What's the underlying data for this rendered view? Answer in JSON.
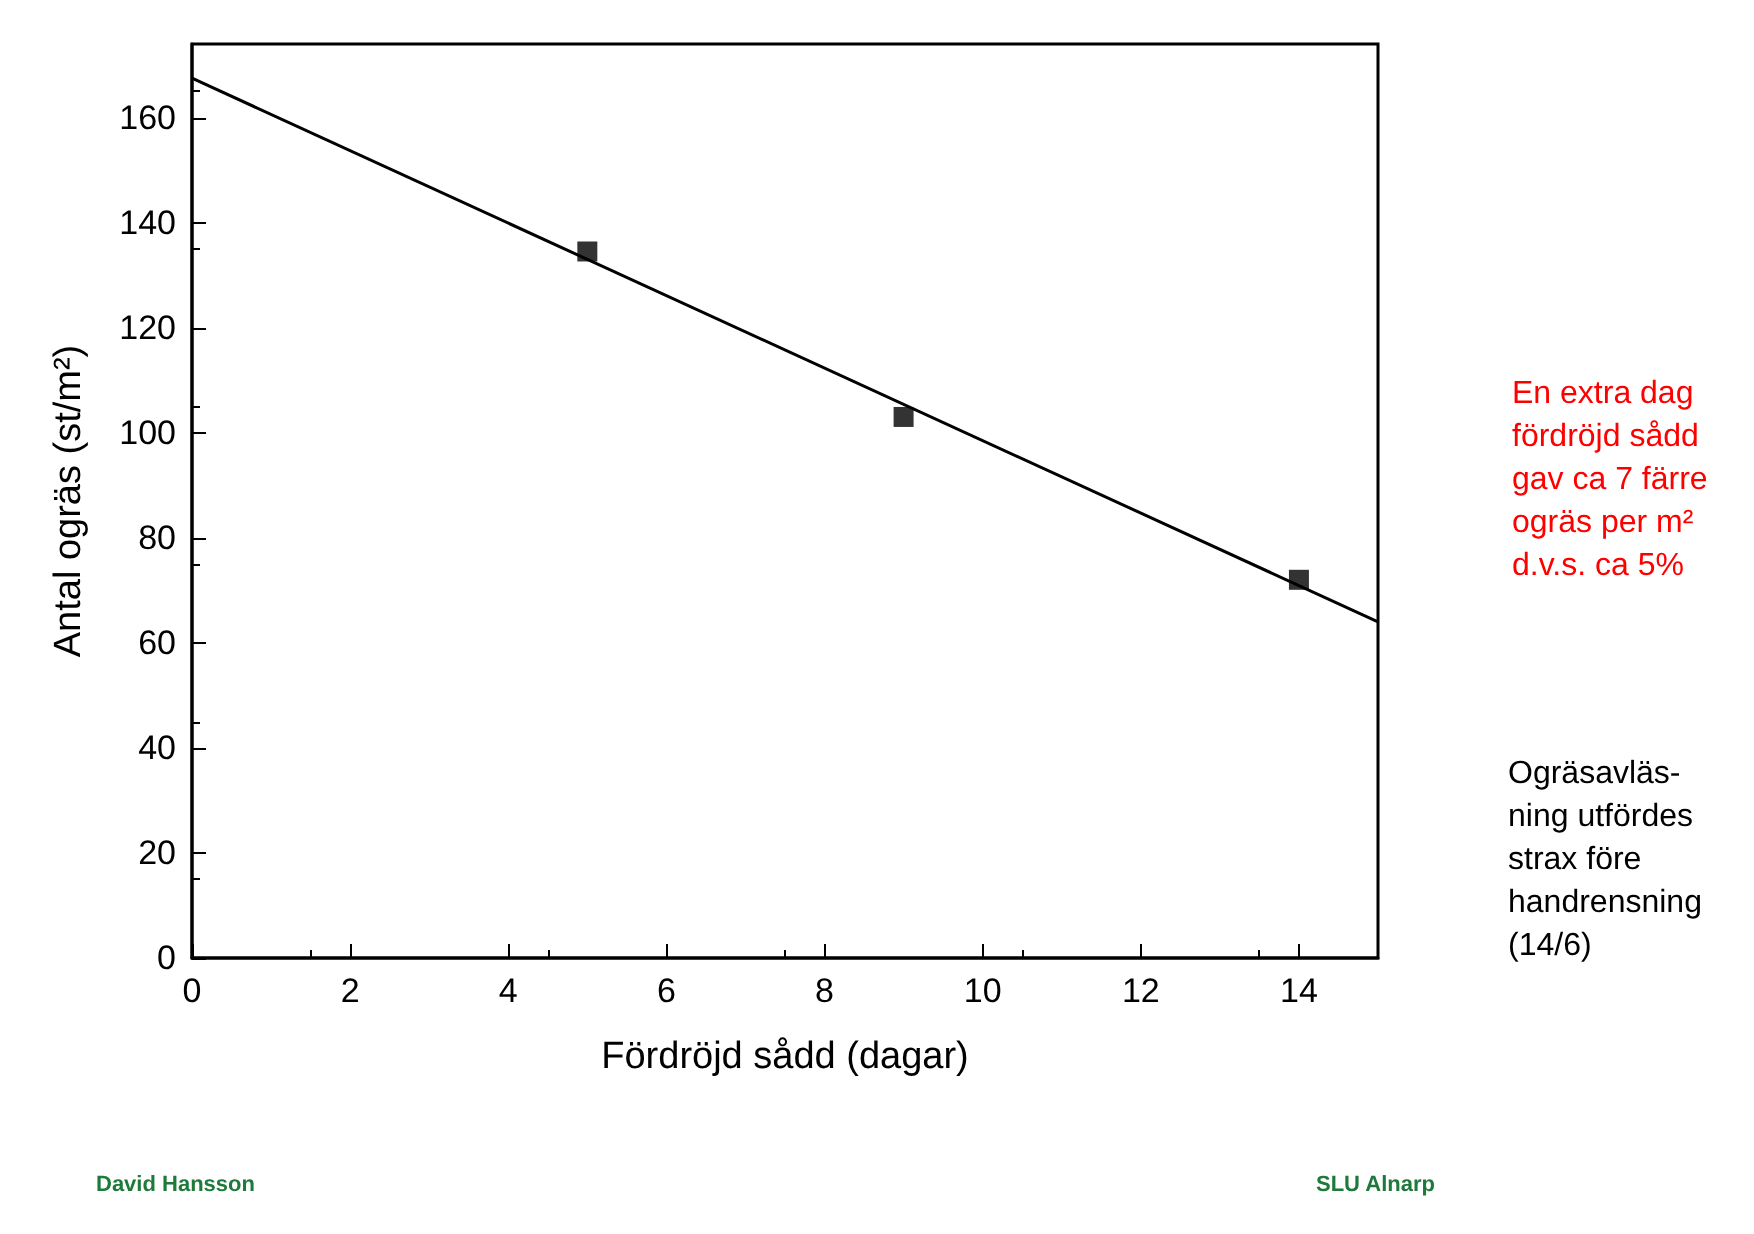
{
  "chart_data": {
    "type": "scatter",
    "xlabel": "Fördröjd sådd (dagar)",
    "ylabel": "Antal ogräs (st/m²)",
    "xlim": [
      0,
      15
    ],
    "xticks": [
      0,
      2,
      4,
      6,
      8,
      10,
      12,
      14
    ],
    "ylim": [
      0,
      174
    ],
    "yticks": [
      0,
      20,
      40,
      60,
      80,
      100,
      120,
      140,
      160
    ],
    "grid": false,
    "series": [
      {
        "x": [
          5,
          9,
          14
        ],
        "values": [
          134.5,
          103,
          72
        ],
        "color": "#000000",
        "marker": "square"
      },
      {
        "type": "line",
        "x": [
          0,
          15
        ],
        "values": [
          167.5,
          64
        ],
        "color": "#000000",
        "marker": "none"
      }
    ],
    "annotations": [
      "En extra dag\nfördröjd sådd\ngav ca 7 färre\nogräs per m²\nd.v.s. ca 5%",
      "Ogräsavläs-\nning utfördes\nstrax före\nhandrensning\n(14/6)",
      "David Hansson",
      "SLU Alnarp"
    ]
  }
}
